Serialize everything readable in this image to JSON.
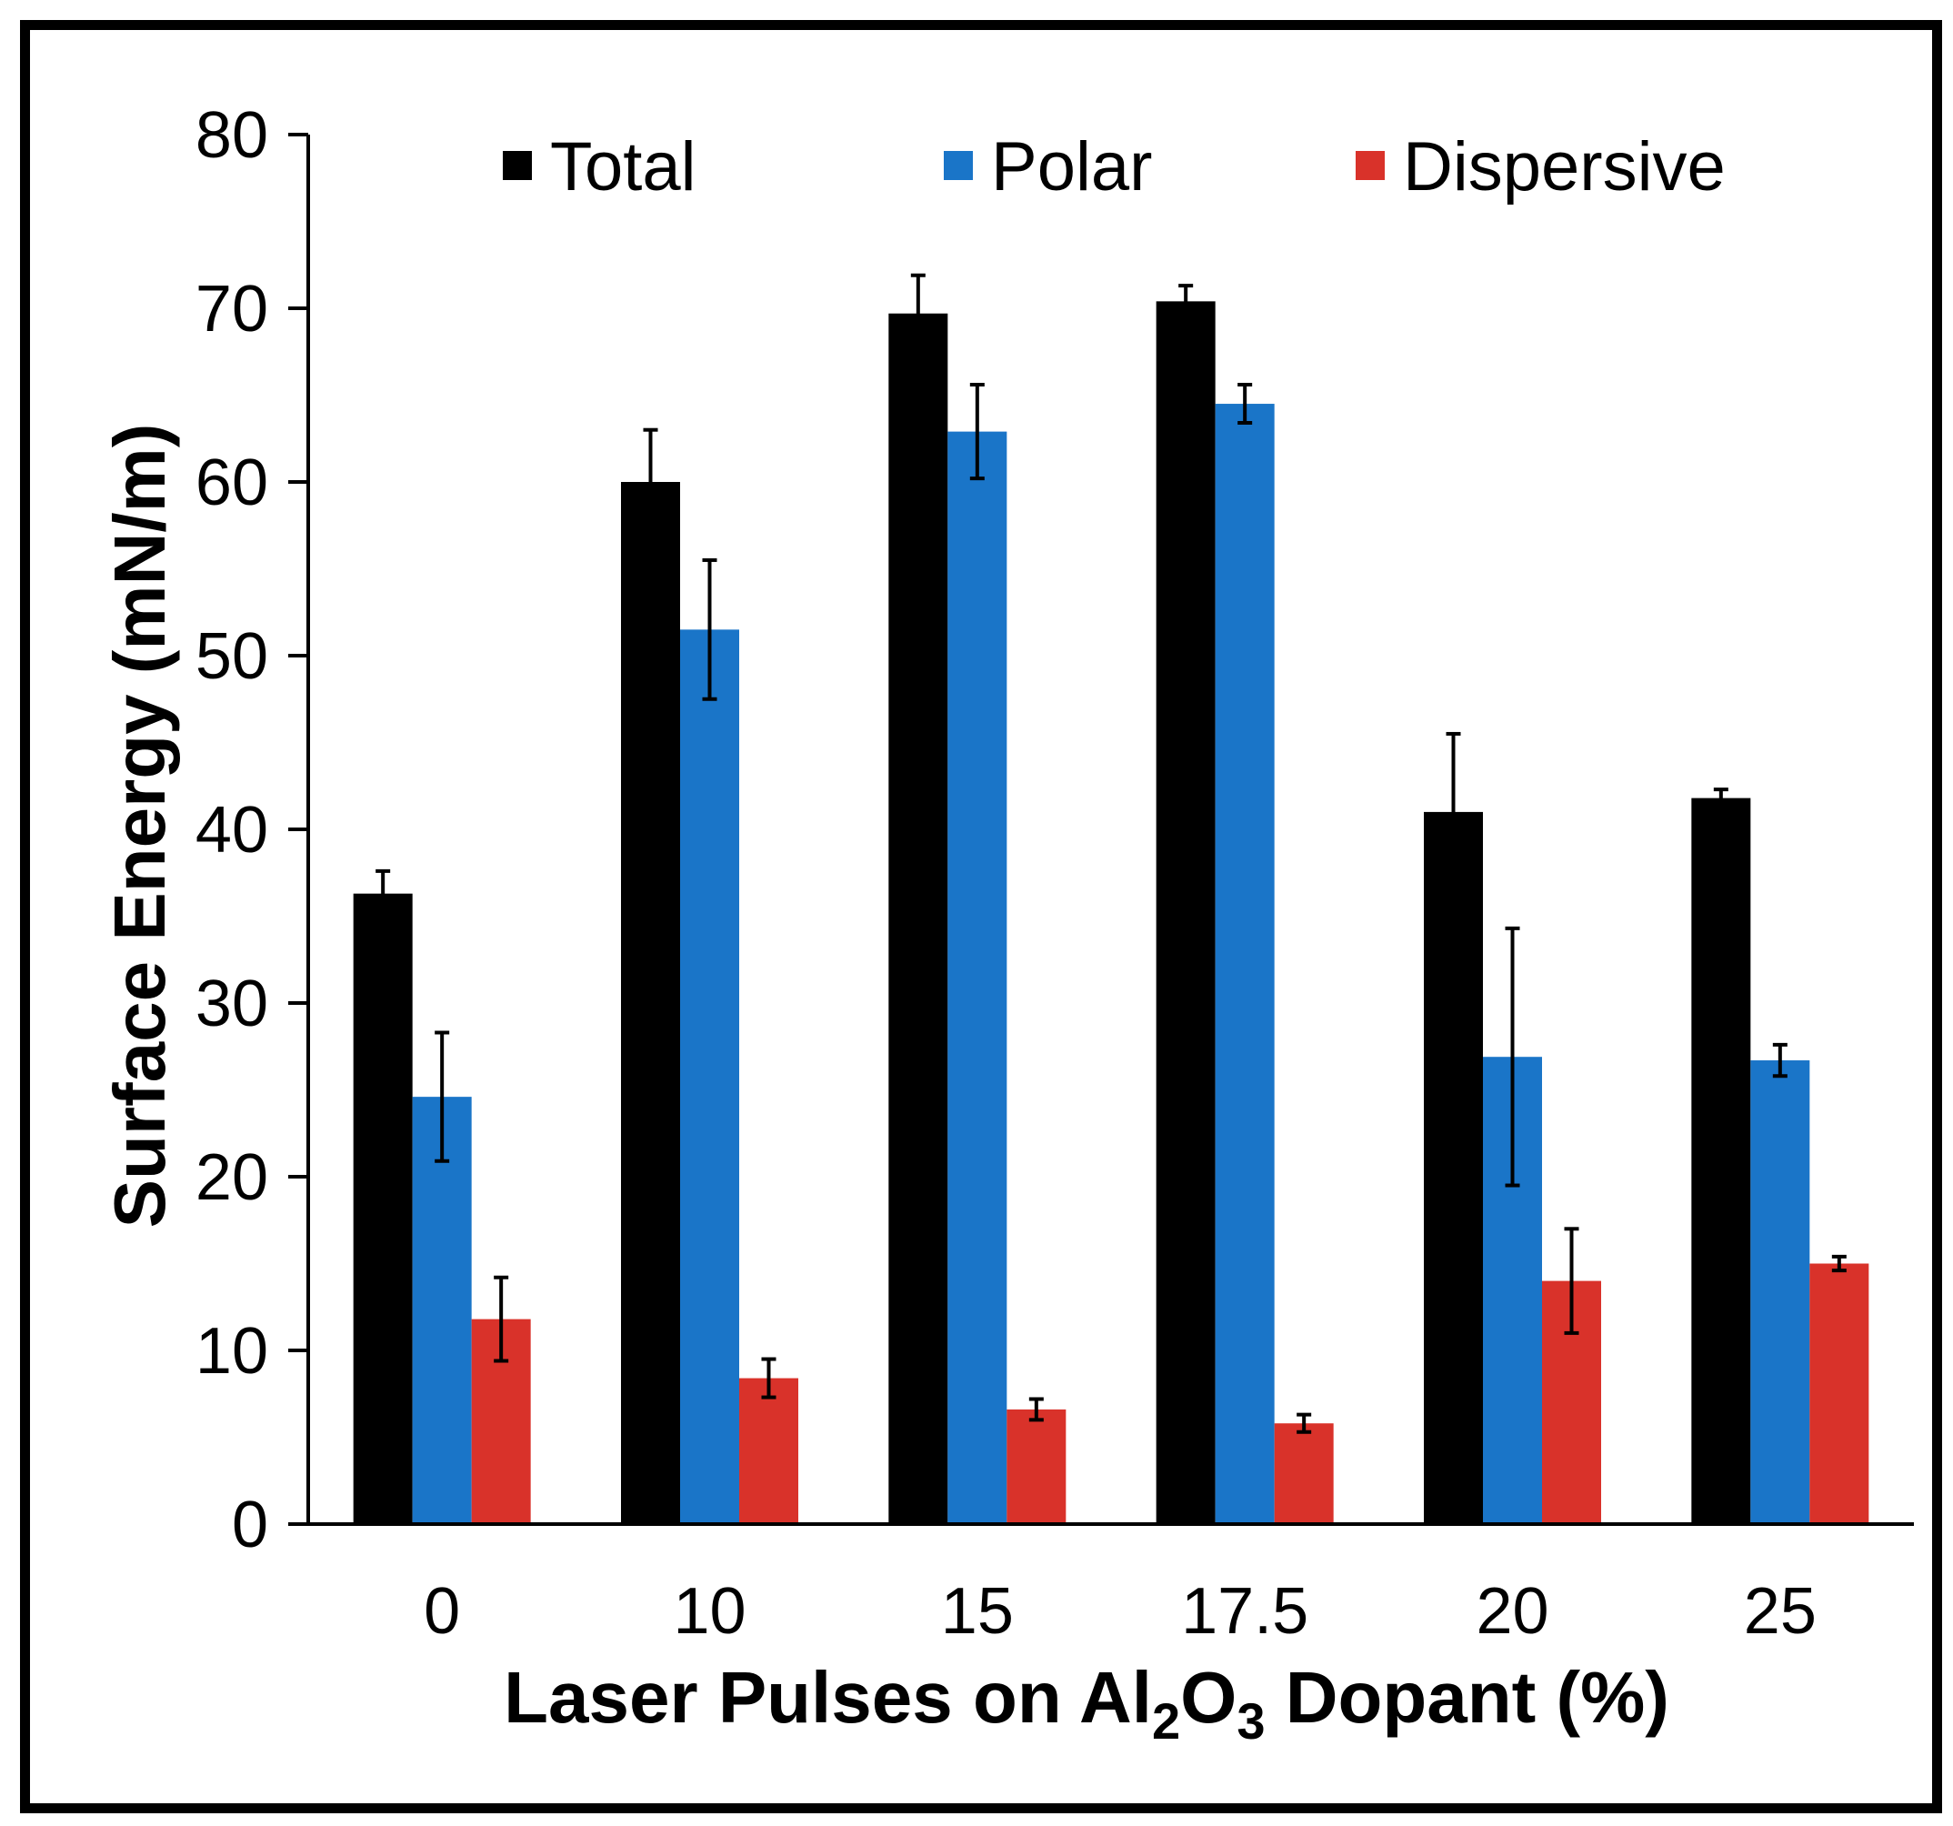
{
  "chart_data": {
    "type": "bar",
    "title": "",
    "xlabel": "Laser Pulses on Al2O3 Dopant (%)",
    "xlabel_parts": {
      "pre": "Laser Pulses on Al",
      "sub1": "2",
      "mid": "O",
      "sub2": "3",
      "post": " Dopant (%)"
    },
    "ylabel": "Surface Energy (mN/m)",
    "ylim": [
      0,
      80
    ],
    "yticks": [
      "0",
      "10",
      "20",
      "30",
      "40",
      "50",
      "60",
      "70",
      "80"
    ],
    "categories": [
      "0",
      "10",
      "15",
      "17.5",
      "20",
      "25"
    ],
    "legend_position": "top",
    "series": [
      {
        "name": "Total",
        "color": "#000000",
        "values": [
          36.3,
          60.0,
          69.7,
          70.4,
          41.0,
          41.8
        ],
        "errors": [
          1.3,
          3.0,
          2.2,
          0.9,
          4.5,
          0.5
        ]
      },
      {
        "name": "Polar",
        "color": "#1a75c8",
        "values": [
          24.6,
          51.5,
          62.9,
          64.5,
          26.9,
          26.7
        ],
        "errors": [
          3.7,
          4.0,
          2.7,
          1.1,
          7.4,
          0.9
        ]
      },
      {
        "name": "Dispersive",
        "color": "#d9322a",
        "values": [
          11.8,
          8.4,
          6.6,
          5.8,
          14.0,
          15.0
        ],
        "errors": [
          2.4,
          1.1,
          0.6,
          0.5,
          3.0,
          0.4
        ]
      }
    ]
  }
}
